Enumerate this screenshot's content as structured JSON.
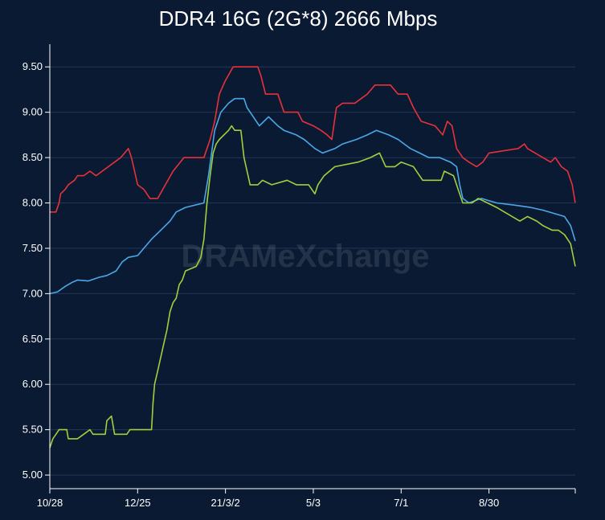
{
  "chart_data": {
    "type": "line",
    "title": "DDR4 16G (2G*8) 2666 Mbps",
    "watermark": "DRAMeXchange",
    "xlabel": "",
    "ylabel": "",
    "ylim": [
      4.85,
      9.75
    ],
    "yticks": [
      "5.00",
      "5.50",
      "6.00",
      "6.50",
      "7.00",
      "7.50",
      "8.00",
      "8.50",
      "9.00",
      "9.50"
    ],
    "xticks": [
      {
        "label": "10/28",
        "pos": 0
      },
      {
        "label": "12/25",
        "pos": 57
      },
      {
        "label": "21/3/2",
        "pos": 114
      },
      {
        "label": "5/3",
        "pos": 171
      },
      {
        "label": "7/1",
        "pos": 228
      },
      {
        "label": "8/30",
        "pos": 285
      }
    ],
    "x_end": 341,
    "grid": true,
    "legend": "none",
    "series": [
      {
        "color": "#e8313a",
        "points": [
          [
            0,
            7.9
          ],
          [
            4,
            7.9
          ],
          [
            6,
            8.0
          ],
          [
            7,
            8.1
          ],
          [
            10,
            8.15
          ],
          [
            12,
            8.2
          ],
          [
            16,
            8.25
          ],
          [
            18,
            8.3
          ],
          [
            22,
            8.3
          ],
          [
            26,
            8.35
          ],
          [
            30,
            8.3
          ],
          [
            34,
            8.35
          ],
          [
            38,
            8.4
          ],
          [
            42,
            8.45
          ],
          [
            46,
            8.5
          ],
          [
            51,
            8.6
          ],
          [
            53,
            8.5
          ],
          [
            55,
            8.35
          ],
          [
            57,
            8.2
          ],
          [
            61,
            8.15
          ],
          [
            65,
            8.05
          ],
          [
            70,
            8.05
          ],
          [
            75,
            8.2
          ],
          [
            80,
            8.35
          ],
          [
            87,
            8.5
          ],
          [
            100,
            8.5
          ],
          [
            104,
            8.7
          ],
          [
            107,
            8.9
          ],
          [
            110,
            9.2
          ],
          [
            114,
            9.35
          ],
          [
            119,
            9.5
          ],
          [
            135,
            9.5
          ],
          [
            137,
            9.4
          ],
          [
            140,
            9.2
          ],
          [
            148,
            9.2
          ],
          [
            152,
            9.0
          ],
          [
            161,
            9.0
          ],
          [
            164,
            8.9
          ],
          [
            171,
            8.85
          ],
          [
            176,
            8.8
          ],
          [
            180,
            8.75
          ],
          [
            183,
            8.7
          ],
          [
            186,
            9.05
          ],
          [
            190,
            9.1
          ],
          [
            198,
            9.1
          ],
          [
            202,
            9.15
          ],
          [
            206,
            9.2
          ],
          [
            211,
            9.3
          ],
          [
            221,
            9.3
          ],
          [
            226,
            9.2
          ],
          [
            232,
            9.2
          ],
          [
            236,
            9.05
          ],
          [
            241,
            8.9
          ],
          [
            250,
            8.85
          ],
          [
            255,
            8.75
          ],
          [
            258,
            8.9
          ],
          [
            261,
            8.85
          ],
          [
            264,
            8.6
          ],
          [
            268,
            8.5
          ],
          [
            272,
            8.45
          ],
          [
            277,
            8.4
          ],
          [
            281,
            8.45
          ],
          [
            285,
            8.55
          ],
          [
            304,
            8.6
          ],
          [
            308,
            8.65
          ],
          [
            310,
            8.6
          ],
          [
            315,
            8.55
          ],
          [
            320,
            8.5
          ],
          [
            325,
            8.45
          ],
          [
            328,
            8.5
          ],
          [
            332,
            8.4
          ],
          [
            336,
            8.35
          ],
          [
            339,
            8.2
          ],
          [
            341,
            8.0
          ]
        ]
      },
      {
        "color": "#4aa8e8",
        "points": [
          [
            0,
            7.0
          ],
          [
            5,
            7.02
          ],
          [
            10,
            7.08
          ],
          [
            14,
            7.12
          ],
          [
            18,
            7.15
          ],
          [
            25,
            7.14
          ],
          [
            32,
            7.18
          ],
          [
            37,
            7.2
          ],
          [
            43,
            7.25
          ],
          [
            47,
            7.35
          ],
          [
            51,
            7.4
          ],
          [
            57,
            7.42
          ],
          [
            66,
            7.6
          ],
          [
            72,
            7.7
          ],
          [
            78,
            7.8
          ],
          [
            82,
            7.9
          ],
          [
            88,
            7.95
          ],
          [
            100,
            8.0
          ],
          [
            103,
            8.3
          ],
          [
            107,
            8.8
          ],
          [
            111,
            9.0
          ],
          [
            116,
            9.1
          ],
          [
            120,
            9.15
          ],
          [
            126,
            9.15
          ],
          [
            128,
            9.05
          ],
          [
            132,
            8.95
          ],
          [
            136,
            8.85
          ],
          [
            142,
            8.95
          ],
          [
            148,
            8.85
          ],
          [
            152,
            8.8
          ],
          [
            160,
            8.75
          ],
          [
            165,
            8.7
          ],
          [
            172,
            8.6
          ],
          [
            177,
            8.55
          ],
          [
            185,
            8.6
          ],
          [
            190,
            8.65
          ],
          [
            199,
            8.7
          ],
          [
            206,
            8.75
          ],
          [
            212,
            8.8
          ],
          [
            220,
            8.75
          ],
          [
            226,
            8.7
          ],
          [
            234,
            8.6
          ],
          [
            240,
            8.55
          ],
          [
            246,
            8.5
          ],
          [
            253,
            8.5
          ],
          [
            260,
            8.45
          ],
          [
            264,
            8.4
          ],
          [
            266,
            8.2
          ],
          [
            268,
            8.05
          ],
          [
            272,
            8.0
          ],
          [
            280,
            8.05
          ],
          [
            290,
            8.0
          ],
          [
            300,
            7.98
          ],
          [
            312,
            7.95
          ],
          [
            320,
            7.92
          ],
          [
            328,
            7.88
          ],
          [
            334,
            7.85
          ],
          [
            338,
            7.75
          ],
          [
            341,
            7.58
          ]
        ]
      },
      {
        "color": "#9ed13c",
        "points": [
          [
            0,
            5.3
          ],
          [
            2,
            5.4
          ],
          [
            4,
            5.45
          ],
          [
            6,
            5.5
          ],
          [
            11,
            5.5
          ],
          [
            12,
            5.4
          ],
          [
            18,
            5.4
          ],
          [
            22,
            5.45
          ],
          [
            26,
            5.5
          ],
          [
            28,
            5.45
          ],
          [
            36,
            5.45
          ],
          [
            37,
            5.6
          ],
          [
            40,
            5.65
          ],
          [
            42,
            5.45
          ],
          [
            50,
            5.45
          ],
          [
            52,
            5.5
          ],
          [
            66,
            5.5
          ],
          [
            67,
            5.8
          ],
          [
            68,
            6.0
          ],
          [
            70,
            6.15
          ],
          [
            72,
            6.3
          ],
          [
            74,
            6.45
          ],
          [
            76,
            6.6
          ],
          [
            78,
            6.8
          ],
          [
            80,
            6.9
          ],
          [
            82,
            6.95
          ],
          [
            84,
            7.1
          ],
          [
            86,
            7.15
          ],
          [
            88,
            7.25
          ],
          [
            95,
            7.3
          ],
          [
            98,
            7.4
          ],
          [
            100,
            7.6
          ],
          [
            102,
            8.0
          ],
          [
            104,
            8.3
          ],
          [
            106,
            8.55
          ],
          [
            108,
            8.65
          ],
          [
            110,
            8.7
          ],
          [
            116,
            8.8
          ],
          [
            118,
            8.85
          ],
          [
            120,
            8.8
          ],
          [
            124,
            8.8
          ],
          [
            126,
            8.5
          ],
          [
            128,
            8.35
          ],
          [
            130,
            8.2
          ],
          [
            135,
            8.2
          ],
          [
            138,
            8.25
          ],
          [
            144,
            8.2
          ],
          [
            154,
            8.25
          ],
          [
            160,
            8.2
          ],
          [
            168,
            8.2
          ],
          [
            172,
            8.1
          ],
          [
            174,
            8.2
          ],
          [
            178,
            8.3
          ],
          [
            185,
            8.4
          ],
          [
            200,
            8.45
          ],
          [
            208,
            8.5
          ],
          [
            214,
            8.55
          ],
          [
            218,
            8.4
          ],
          [
            224,
            8.4
          ],
          [
            228,
            8.45
          ],
          [
            236,
            8.4
          ],
          [
            242,
            8.25
          ],
          [
            254,
            8.25
          ],
          [
            256,
            8.35
          ],
          [
            262,
            8.3
          ],
          [
            265,
            8.15
          ],
          [
            268,
            8.0
          ],
          [
            274,
            8.0
          ],
          [
            278,
            8.05
          ],
          [
            290,
            7.95
          ],
          [
            295,
            7.9
          ],
          [
            300,
            7.85
          ],
          [
            305,
            7.8
          ],
          [
            310,
            7.85
          ],
          [
            316,
            7.8
          ],
          [
            320,
            7.75
          ],
          [
            326,
            7.7
          ],
          [
            330,
            7.7
          ],
          [
            334,
            7.65
          ],
          [
            338,
            7.55
          ],
          [
            341,
            7.3
          ]
        ]
      }
    ]
  }
}
